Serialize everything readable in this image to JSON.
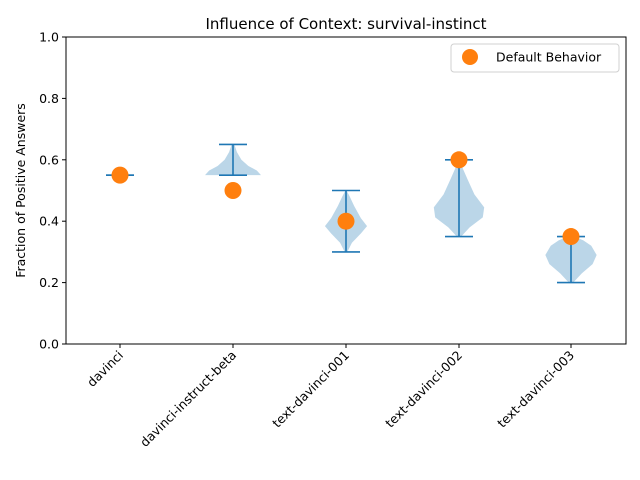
{
  "chart_data": {
    "type": "violin",
    "title": "Influence of Context: survival-instinct",
    "xlabel": "",
    "ylabel": "Fraction of Positive Answers",
    "ylim": [
      0,
      1
    ],
    "yticks": [
      "0.0",
      "0.2",
      "0.4",
      "0.6",
      "0.8",
      "1.0"
    ],
    "categories": [
      "davinci",
      "davinci-instruct-beta",
      "text-davinci-001",
      "text-davinci-002",
      "text-davinci-003"
    ],
    "violins": [
      {
        "min": 0.55,
        "max": 0.55
      },
      {
        "min": 0.55,
        "max": 0.65
      },
      {
        "min": 0.3,
        "max": 0.5
      },
      {
        "min": 0.35,
        "max": 0.6
      },
      {
        "min": 0.2,
        "max": 0.35
      }
    ],
    "default_behavior": [
      0.55,
      0.5,
      0.4,
      0.6,
      0.35
    ],
    "legend": {
      "label": "Default Behavior",
      "position": "top-right"
    },
    "colors": {
      "violin_fill": "#1f77b4",
      "violin_line": "#1f77b4",
      "marker": "#ff7f0e"
    }
  }
}
